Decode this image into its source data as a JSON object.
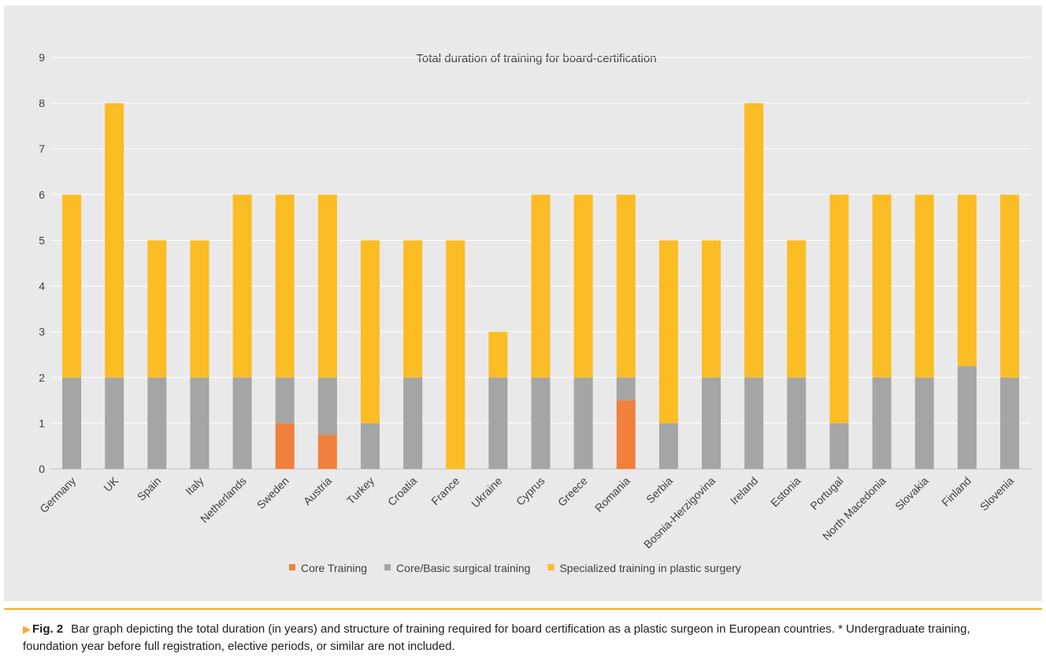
{
  "chart_data": {
    "type": "bar",
    "stacked": true,
    "title": "Total duration of training for board-certification",
    "xlabel": "",
    "ylabel": "",
    "ylim": [
      0,
      9
    ],
    "yticks": [
      0,
      1,
      2,
      3,
      4,
      5,
      6,
      7,
      8,
      9
    ],
    "grid": true,
    "legend": "bottom",
    "categories": [
      "Germany",
      "UK",
      "Spain",
      "Italy",
      "Netherlands",
      "Sweden",
      "Austria",
      "Turkey",
      "Croatia",
      "France",
      "Ukraine",
      "Cyprus",
      "Greece",
      "Romania",
      "Serbia",
      "Bosnia-Herzigovina",
      "Ireland",
      "Estonia",
      "Portugal",
      "North Macedonia",
      "Slovakia",
      "Finland",
      "Slovenia"
    ],
    "series": [
      {
        "name": "Core Training",
        "color": "#f0803c",
        "values": [
          0,
          0,
          0,
          0,
          0,
          1,
          0.75,
          0,
          0,
          0,
          0,
          0,
          0,
          1.5,
          0,
          0,
          0,
          0,
          0,
          0,
          0,
          0,
          0
        ]
      },
      {
        "name": "Core/Basic surgical training",
        "color": "#a5a5a5",
        "values": [
          2,
          2,
          2,
          2,
          2,
          1,
          1.25,
          1,
          2,
          0,
          2,
          2,
          2,
          0.5,
          1,
          2,
          2,
          2,
          1,
          2,
          2,
          2.25,
          2
        ]
      },
      {
        "name": "Specialized training in plastic surgery",
        "color": "#fbbc24",
        "values": [
          4,
          6,
          3,
          3,
          4,
          4,
          4,
          4,
          3,
          5,
          1,
          4,
          4,
          4,
          4,
          3,
          6,
          3,
          5,
          4,
          4,
          3.75,
          4
        ]
      }
    ]
  },
  "caption": {
    "marker": "▶",
    "label": "Fig. 2",
    "text": "Bar graph depicting the total duration (in years) and structure of training required for board certification as a plastic surgeon in European countries. * Undergraduate training, foundation year before full registration, elective periods, or similar are not included."
  }
}
